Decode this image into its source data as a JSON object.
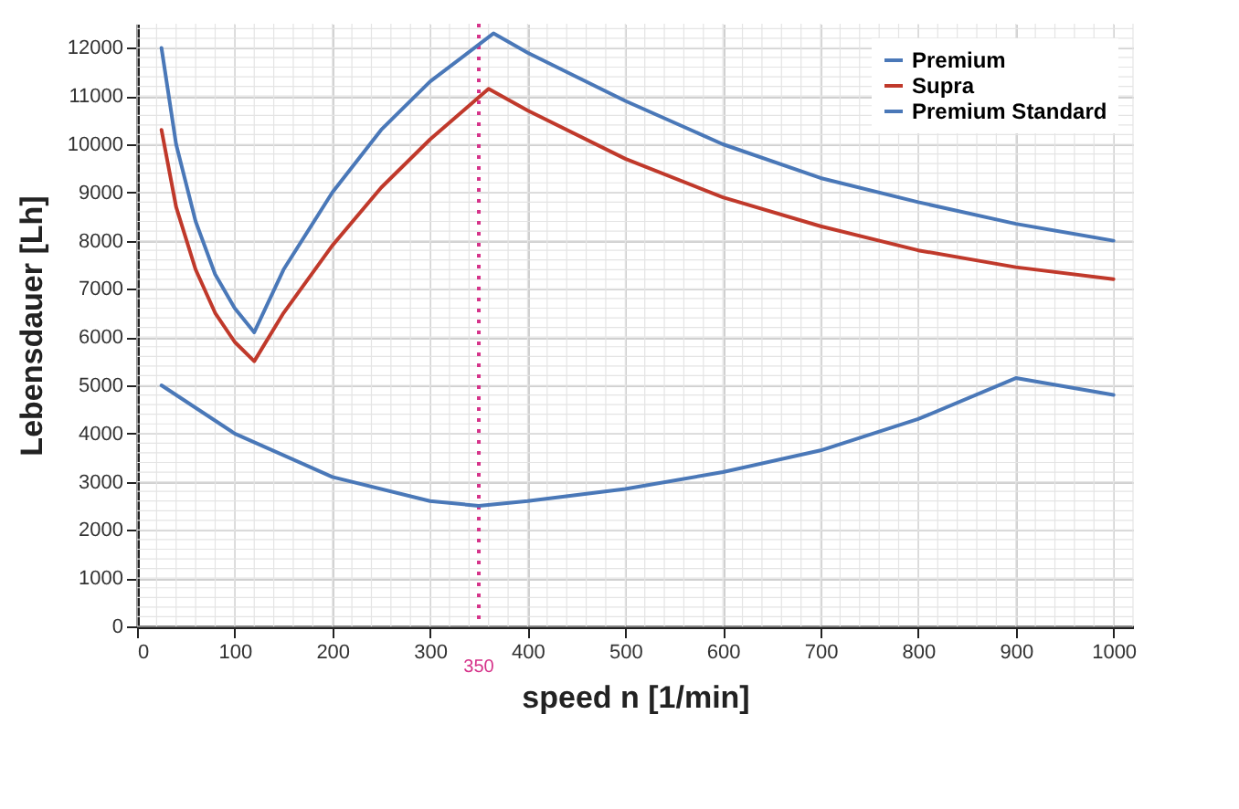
{
  "chart_data": {
    "type": "line",
    "xlabel": "speed n [1/min]",
    "ylabel": "Lebensdauer [Lh]",
    "xlim": [
      0,
      1020
    ],
    "xticks": [
      0,
      100,
      200,
      300,
      400,
      500,
      600,
      700,
      800,
      900,
      1000
    ],
    "ylim": [
      0,
      12500
    ],
    "yticks": [
      0,
      1000,
      2000,
      3000,
      4000,
      5000,
      6000,
      7000,
      8000,
      9000,
      10000,
      11000,
      12000
    ],
    "grid": true,
    "legend": "top right",
    "marker": "none",
    "line_style": "solid",
    "series": [
      {
        "name": "Premium",
        "color": "#4a78b8",
        "x": [
          25,
          40,
          60,
          80,
          100,
          120,
          150,
          200,
          250,
          300,
          365,
          400,
          500,
          600,
          700,
          800,
          900,
          1000
        ],
        "values": [
          12000,
          10000,
          8400,
          7300,
          6600,
          6100,
          7400,
          9000,
          10300,
          11300,
          12300,
          11900,
          10900,
          10000,
          9300,
          8800,
          8350,
          8000
        ]
      },
      {
        "name": "Supra",
        "color": "#c0392b",
        "x": [
          25,
          40,
          60,
          80,
          100,
          120,
          150,
          200,
          250,
          300,
          360,
          400,
          500,
          600,
          700,
          800,
          900,
          1000
        ],
        "values": [
          10300,
          8700,
          7400,
          6500,
          5900,
          5500,
          6500,
          7900,
          9100,
          10100,
          11150,
          10700,
          9700,
          8900,
          8300,
          7800,
          7450,
          7200
        ]
      },
      {
        "name": "Premium Standard",
        "color": "#4a78b8",
        "x": [
          25,
          100,
          200,
          300,
          350,
          400,
          500,
          600,
          700,
          800,
          900,
          1000
        ],
        "values": [
          5000,
          4000,
          3100,
          2600,
          2500,
          2600,
          2850,
          3200,
          3650,
          4300,
          5150,
          4800
        ]
      }
    ],
    "ref_lines": [
      {
        "axis": "x",
        "value": 350,
        "label": "350",
        "color": "#d6338a",
        "line_style": "dotted"
      }
    ]
  }
}
